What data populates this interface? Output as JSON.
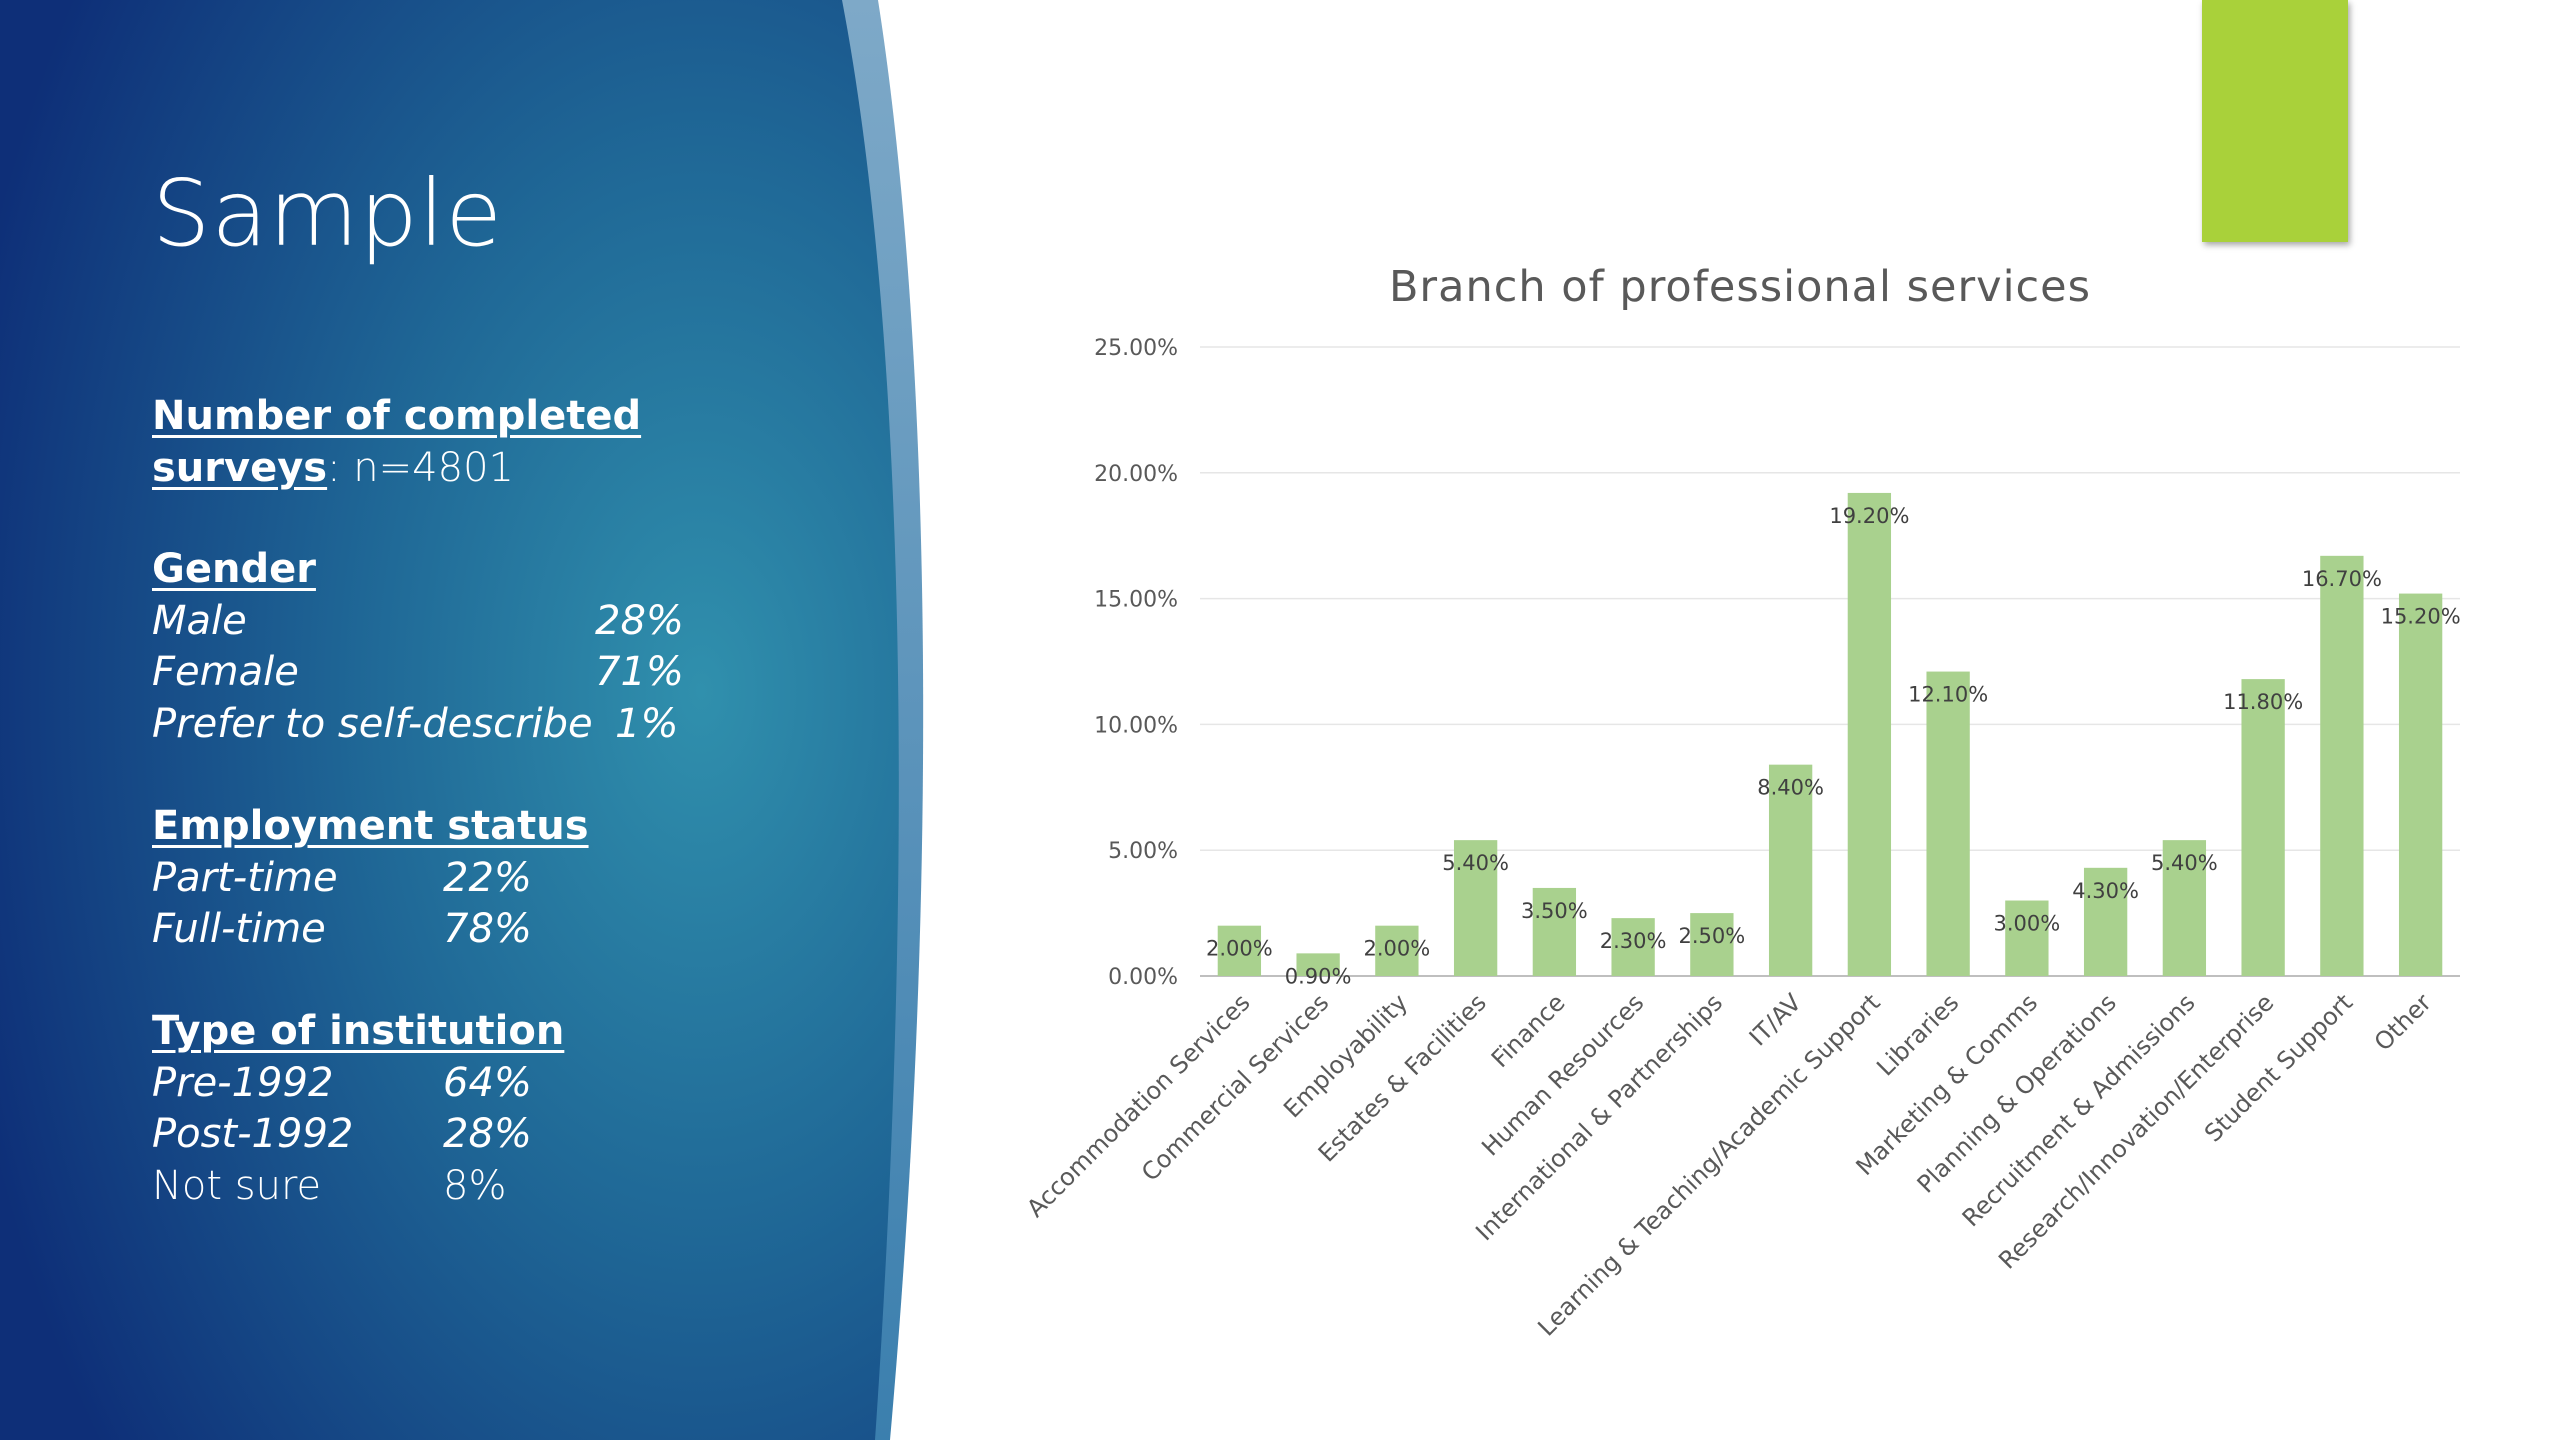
{
  "slide": {
    "title": "Sample",
    "surveys": {
      "heading_line1": "Number of completed",
      "heading_line2": "surveys",
      "value": ": n=4801"
    },
    "gender": {
      "heading": "Gender",
      "rows": [
        {
          "label": "Male",
          "value": "28%"
        },
        {
          "label": "Female",
          "value": "71%"
        },
        {
          "label": "Prefer to self-describe",
          "value": "1%"
        }
      ]
    },
    "employment": {
      "heading": "Employment status",
      "rows": [
        {
          "label": "Part-time",
          "value": "22%"
        },
        {
          "label": "Full-time",
          "value": "78%"
        }
      ]
    },
    "institution": {
      "heading": "Type of institution",
      "rows": [
        {
          "label": "Pre-1992",
          "value": "64%"
        },
        {
          "label": "Post-1992",
          "value": "28%"
        },
        {
          "label": "Not sure",
          "value": "8%"
        }
      ]
    }
  },
  "colors": {
    "panel_dark": "#10367a",
    "panel_light": "#2f8fb0",
    "bar": "#a9d18e",
    "accent": "#a9d13a"
  },
  "chart_data": {
    "type": "bar",
    "title": "Branch of professional services",
    "categories": [
      "Accommodation Services",
      "Commercial Services",
      "Employability",
      "Estates & Facilities",
      "Finance",
      "Human Resources",
      "International & Partnerships",
      "IT/AV",
      "Learning & Teaching/Academic Support",
      "Libraries",
      "Marketing & Comms",
      "Planning & Operations",
      "Recruitment & Admissions",
      "Research/Innovation/Enterprise",
      "Student Support",
      "Other"
    ],
    "values": [
      2.0,
      0.9,
      2.0,
      5.4,
      3.5,
      2.3,
      2.5,
      8.4,
      19.2,
      12.1,
      3.0,
      4.3,
      5.4,
      11.8,
      16.7,
      15.2
    ],
    "data_labels": [
      "2.00%",
      "0.90%",
      "2.00%",
      "5.40%",
      "3.50%",
      "2.30%",
      "2.50%",
      "8.40%",
      "19.20%",
      "12.10%",
      "3.00%",
      "4.30%",
      "5.40%",
      "11.80%",
      "16.70%",
      "15.20%"
    ],
    "ylim": [
      0,
      25
    ],
    "yticks": [
      0,
      5,
      10,
      15,
      20,
      25
    ],
    "ytick_labels": [
      "0.00%",
      "5.00%",
      "10.00%",
      "15.00%",
      "20.00%",
      "25.00%"
    ],
    "xlabel": "",
    "ylabel": "",
    "grid": true,
    "legend": "none"
  }
}
